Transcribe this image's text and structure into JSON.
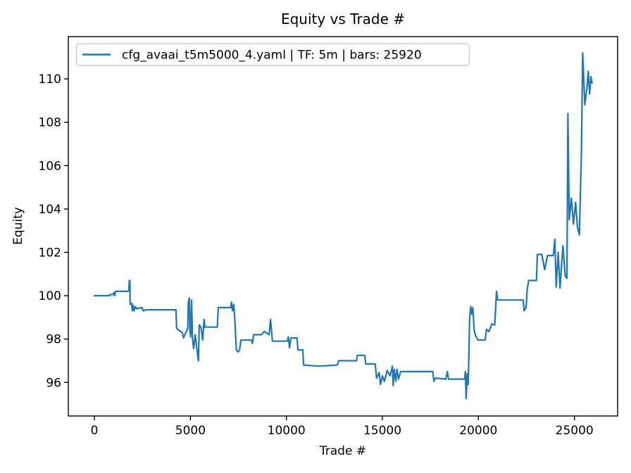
{
  "chart_data": {
    "type": "line",
    "title": "Equity vs Trade #",
    "xlabel": "Trade #",
    "ylabel": "Equity",
    "grid": false,
    "legend_position": "upper left",
    "line_color": "#1f77b4",
    "legend_border_color": "#cccccc",
    "xlim": [
      -1360,
      27250
    ],
    "ylim": [
      94.45,
      111.95
    ],
    "xticks": [
      0,
      5000,
      10000,
      15000,
      20000,
      25000
    ],
    "xtick_labels": [
      "0",
      "5000",
      "10000",
      "15000",
      "20000",
      "25000"
    ],
    "yticks": [
      96,
      98,
      100,
      102,
      104,
      106,
      108,
      110
    ],
    "ytick_labels": [
      "96",
      "98",
      "100",
      "102",
      "104",
      "106",
      "108",
      "110"
    ],
    "series": [
      {
        "name": "cfg_avaai_t5m5000_4.yaml | TF: 5m | bars: 25920",
        "points": [
          [
            0,
            100.0
          ],
          [
            770,
            100.0
          ],
          [
            800,
            100.05
          ],
          [
            980,
            100.05
          ],
          [
            1010,
            100.15
          ],
          [
            1060,
            100.0
          ],
          [
            1100,
            100.2
          ],
          [
            1750,
            100.2
          ],
          [
            1790,
            100.25
          ],
          [
            1815,
            100.7
          ],
          [
            1845,
            100.7
          ],
          [
            1860,
            99.6
          ],
          [
            1940,
            99.65
          ],
          [
            1970,
            99.3
          ],
          [
            2010,
            99.55
          ],
          [
            2070,
            99.3
          ],
          [
            2130,
            99.5
          ],
          [
            2200,
            99.4
          ],
          [
            2480,
            99.45
          ],
          [
            2540,
            99.3
          ],
          [
            2700,
            99.35
          ],
          [
            4250,
            99.35
          ],
          [
            4280,
            98.5
          ],
          [
            4400,
            98.4
          ],
          [
            4580,
            98.3
          ],
          [
            4640,
            98.05
          ],
          [
            4760,
            98.3
          ],
          [
            4860,
            98.5
          ],
          [
            4890,
            99.7
          ],
          [
            4940,
            99.9
          ],
          [
            4970,
            98.4
          ],
          [
            5010,
            98.1
          ],
          [
            5060,
            99.8
          ],
          [
            5110,
            98.0
          ],
          [
            5170,
            97.55
          ],
          [
            5250,
            98.2
          ],
          [
            5340,
            97.5
          ],
          [
            5420,
            97.0
          ],
          [
            5460,
            98.65
          ],
          [
            5550,
            98.55
          ],
          [
            5640,
            97.95
          ],
          [
            5710,
            98.9
          ],
          [
            5760,
            98.55
          ],
          [
            6400,
            98.55
          ],
          [
            6450,
            99.45
          ],
          [
            7100,
            99.45
          ],
          [
            7140,
            99.7
          ],
          [
            7190,
            99.3
          ],
          [
            7260,
            99.6
          ],
          [
            7320,
            98.8
          ],
          [
            7390,
            97.5
          ],
          [
            7480,
            97.4
          ],
          [
            7560,
            97.5
          ],
          [
            7630,
            97.95
          ],
          [
            8180,
            97.95
          ],
          [
            8230,
            97.8
          ],
          [
            8290,
            98.2
          ],
          [
            8700,
            98.2
          ],
          [
            8840,
            98.35
          ],
          [
            9100,
            98.2
          ],
          [
            9170,
            98.9
          ],
          [
            9270,
            97.9
          ],
          [
            10040,
            97.9
          ],
          [
            10100,
            98.1
          ],
          [
            10160,
            97.6
          ],
          [
            10230,
            98.05
          ],
          [
            10550,
            98.05
          ],
          [
            10600,
            97.5
          ],
          [
            10850,
            97.5
          ],
          [
            10900,
            96.8
          ],
          [
            11680,
            96.75
          ],
          [
            12650,
            96.8
          ],
          [
            12720,
            97.0
          ],
          [
            13650,
            97.0
          ],
          [
            13700,
            97.25
          ],
          [
            14080,
            97.25
          ],
          [
            14130,
            96.85
          ],
          [
            14620,
            96.85
          ],
          [
            14700,
            96.2
          ],
          [
            14830,
            96.45
          ],
          [
            14900,
            95.9
          ],
          [
            15000,
            96.3
          ],
          [
            15100,
            96.05
          ],
          [
            15250,
            96.55
          ],
          [
            15400,
            96.3
          ],
          [
            15520,
            96.75
          ],
          [
            15560,
            95.85
          ],
          [
            15620,
            96.6
          ],
          [
            15700,
            96.05
          ],
          [
            15760,
            96.6
          ],
          [
            15840,
            96.15
          ],
          [
            15950,
            96.5
          ],
          [
            16700,
            96.5
          ],
          [
            17620,
            96.5
          ],
          [
            17680,
            96.05
          ],
          [
            17760,
            96.2
          ],
          [
            18300,
            96.15
          ],
          [
            18380,
            96.5
          ],
          [
            18440,
            96.15
          ],
          [
            19280,
            96.15
          ],
          [
            19320,
            96.5
          ],
          [
            19360,
            95.25
          ],
          [
            19420,
            96.4
          ],
          [
            19470,
            95.9
          ],
          [
            19540,
            98.9
          ],
          [
            19600,
            99.5
          ],
          [
            19650,
            99.15
          ],
          [
            19710,
            99.45
          ],
          [
            19780,
            98.4
          ],
          [
            19850,
            98.15
          ],
          [
            19980,
            97.95
          ],
          [
            20350,
            97.95
          ],
          [
            20420,
            98.45
          ],
          [
            20550,
            98.35
          ],
          [
            20700,
            98.7
          ],
          [
            20850,
            98.65
          ],
          [
            20940,
            100.2
          ],
          [
            21000,
            99.8
          ],
          [
            22330,
            99.8
          ],
          [
            22380,
            99.3
          ],
          [
            22480,
            99.45
          ],
          [
            22540,
            100.3
          ],
          [
            22620,
            100.7
          ],
          [
            23020,
            100.7
          ],
          [
            23070,
            101.9
          ],
          [
            23300,
            101.9
          ],
          [
            23450,
            101.2
          ],
          [
            23600,
            101.85
          ],
          [
            23900,
            101.85
          ],
          [
            23980,
            102.6
          ],
          [
            24050,
            100.4
          ],
          [
            24150,
            102.0
          ],
          [
            24250,
            100.35
          ],
          [
            24400,
            102.3
          ],
          [
            24520,
            100.9
          ],
          [
            24610,
            100.8
          ],
          [
            24660,
            108.4
          ],
          [
            24730,
            103.5
          ],
          [
            24840,
            104.5
          ],
          [
            24950,
            103.3
          ],
          [
            25060,
            104.3
          ],
          [
            25160,
            103.15
          ],
          [
            25260,
            102.8
          ],
          [
            25360,
            106.5
          ],
          [
            25430,
            111.2
          ],
          [
            25540,
            108.8
          ],
          [
            25650,
            109.6
          ],
          [
            25720,
            110.35
          ],
          [
            25790,
            109.3
          ],
          [
            25860,
            110.1
          ],
          [
            25920,
            109.8
          ]
        ]
      }
    ]
  },
  "legend": {
    "label": "cfg_avaai_t5m5000_4.yaml | TF: 5m | bars: 25920"
  }
}
